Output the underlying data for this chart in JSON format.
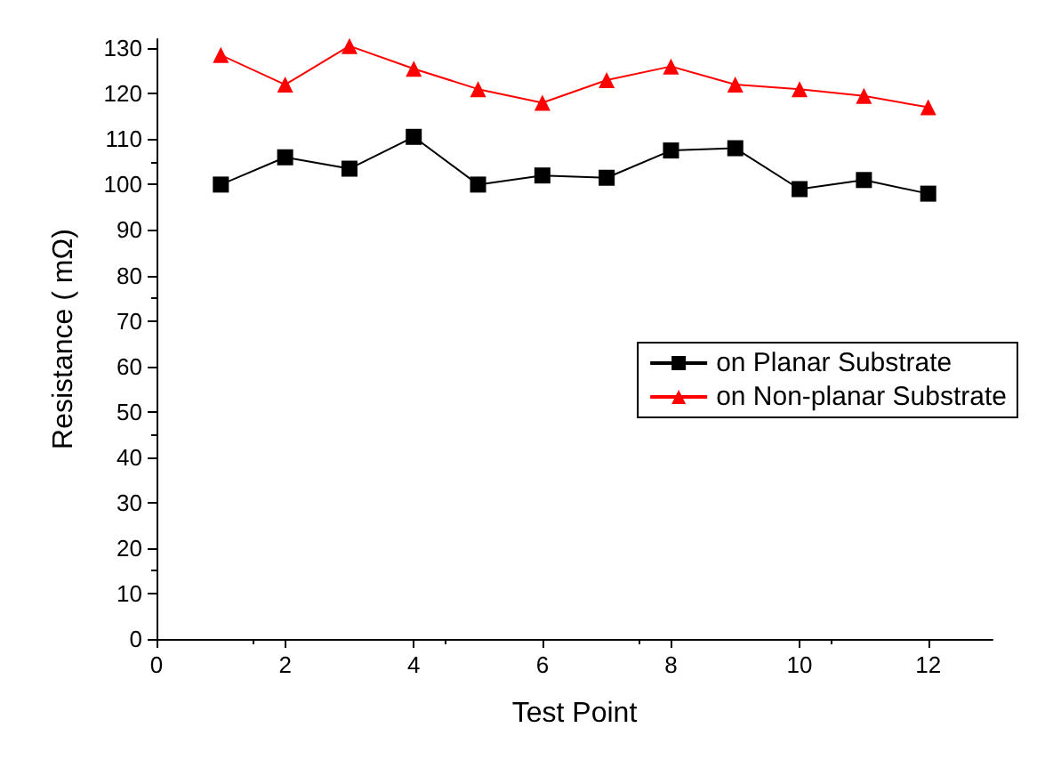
{
  "chart_data": {
    "type": "line",
    "xlabel": "Test Point",
    "ylabel": "Resistance ( mΩ)",
    "x": [
      1,
      2,
      3,
      4,
      5,
      6,
      7,
      8,
      9,
      10,
      11,
      12
    ],
    "series": [
      {
        "name": "on Planar Substrate",
        "color": "#000000",
        "marker": "square",
        "values": [
          100,
          106,
          103.5,
          110.5,
          100,
          102,
          101.5,
          107.5,
          108,
          99,
          101,
          98
        ]
      },
      {
        "name": "on Non-planar Substrate",
        "color": "#ff0000",
        "marker": "triangle",
        "values": [
          128.5,
          122,
          130.5,
          125.5,
          121,
          118,
          123,
          126,
          122,
          121,
          119.5,
          117
        ]
      }
    ],
    "xlim": [
      0,
      13
    ],
    "xticks": [
      0,
      2,
      4,
      6,
      8,
      10,
      12
    ],
    "ylim": [
      0,
      132
    ],
    "yticks": [
      0,
      10,
      20,
      30,
      40,
      50,
      60,
      70,
      80,
      90,
      100,
      110,
      120,
      130
    ],
    "grid": false,
    "legend": "right",
    "line_style": "solid"
  }
}
